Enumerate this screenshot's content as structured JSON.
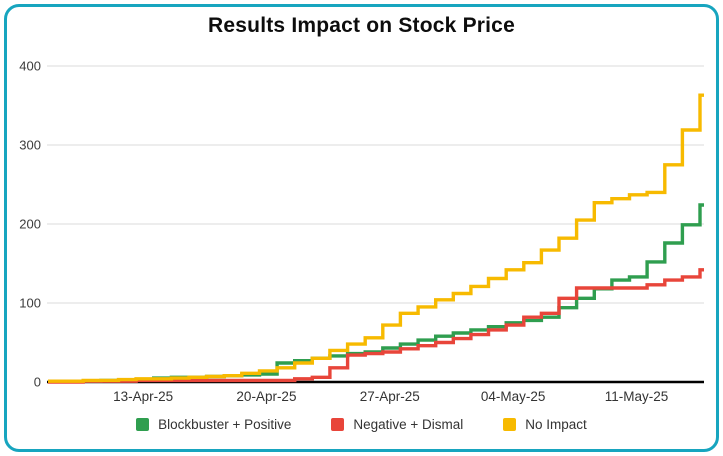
{
  "card": {
    "border_color": "#17a5bf",
    "background": "#ffffff"
  },
  "chart_data": {
    "type": "line",
    "step": true,
    "title": "Results Impact on Stock Price",
    "xlabel": "",
    "ylabel": "",
    "ylim": [
      0,
      400
    ],
    "yticks": [
      0,
      100,
      200,
      300,
      400
    ],
    "grid": "horizontal",
    "gridline_color": "#e2e2e2",
    "axis_line_color": "#000000",
    "legend_position": "bottom",
    "x": [
      "08-Apr-25",
      "09-Apr-25",
      "10-Apr-25",
      "11-Apr-25",
      "12-Apr-25",
      "13-Apr-25",
      "14-Apr-25",
      "15-Apr-25",
      "16-Apr-25",
      "17-Apr-25",
      "18-Apr-25",
      "19-Apr-25",
      "20-Apr-25",
      "21-Apr-25",
      "22-Apr-25",
      "23-Apr-25",
      "24-Apr-25",
      "25-Apr-25",
      "26-Apr-25",
      "27-Apr-25",
      "28-Apr-25",
      "29-Apr-25",
      "30-Apr-25",
      "01-May-25",
      "02-May-25",
      "03-May-25",
      "04-May-25",
      "05-May-25",
      "06-May-25",
      "07-May-25",
      "08-May-25",
      "09-May-25",
      "10-May-25",
      "11-May-25",
      "12-May-25",
      "13-May-25",
      "14-May-25",
      "15-May-25"
    ],
    "x_tick_labels": [
      "13-Apr-25",
      "20-Apr-25",
      "27-Apr-25",
      "04-May-25",
      "11-May-25"
    ],
    "x_tick_indices": [
      5,
      12,
      19,
      26,
      33
    ],
    "series": [
      {
        "name": "Blockbuster + Positive",
        "color": "#2f9e4f",
        "values": [
          1,
          1,
          1,
          2,
          2,
          3,
          5,
          6,
          6,
          7,
          8,
          9,
          10,
          24,
          27,
          30,
          33,
          36,
          38,
          43,
          48,
          53,
          58,
          62,
          66,
          70,
          75,
          78,
          82,
          94,
          106,
          118,
          129,
          133,
          152,
          176,
          199,
          224
        ]
      },
      {
        "name": "Negative + Dismal",
        "color": "#e8453a",
        "values": [
          0,
          0,
          1,
          1,
          1,
          2,
          2,
          2,
          2,
          2,
          2,
          2,
          2,
          2,
          4,
          6,
          18,
          34,
          36,
          38,
          42,
          46,
          50,
          55,
          60,
          66,
          72,
          82,
          87,
          106,
          119,
          119,
          119,
          119,
          123,
          129,
          133,
          142
        ]
      },
      {
        "name": "No Impact",
        "color": "#f7ba00",
        "values": [
          1,
          1,
          2,
          2,
          3,
          4,
          4,
          5,
          6,
          7,
          8,
          11,
          14,
          18,
          24,
          30,
          40,
          48,
          56,
          72,
          87,
          95,
          104,
          112,
          121,
          131,
          142,
          151,
          167,
          182,
          205,
          227,
          232,
          237,
          240,
          275,
          319,
          363
        ]
      }
    ]
  }
}
